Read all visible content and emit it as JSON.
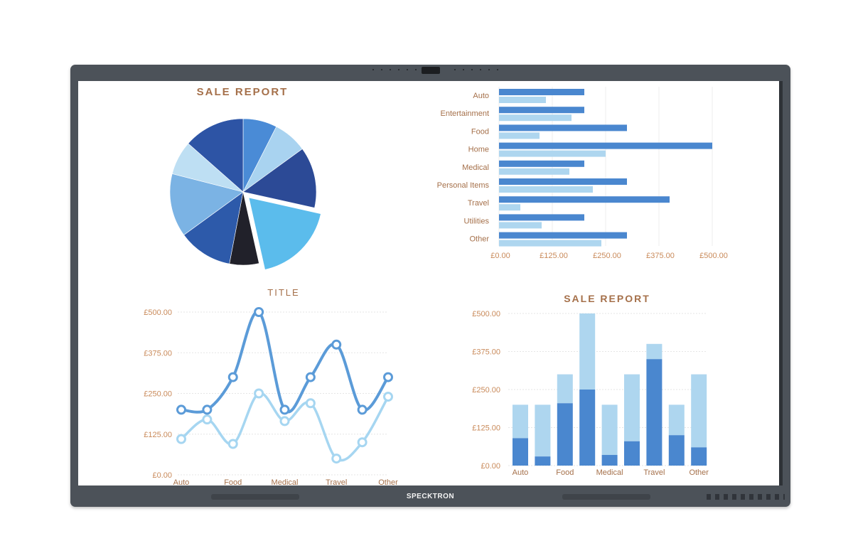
{
  "device": {
    "brand": "SPECKTRON"
  },
  "colors": {
    "dark_blue": "#2a4fa3",
    "mid_blue": "#4a87cf",
    "light_blue": "#aed6ef",
    "text_brown": "#a5704a",
    "axis_text": "#c98a5a"
  },
  "chart_data": [
    {
      "type": "pie",
      "title": "SALE REPORT",
      "slices": [
        {
          "value": 7.5,
          "color": "#4a8bd6"
        },
        {
          "value": 7.5,
          "color": "#a9d3f0"
        },
        {
          "value": 13.5,
          "color": "#2c4a96"
        },
        {
          "value": 18,
          "color": "#5bbcec",
          "exploded": true
        },
        {
          "value": 6.5,
          "color": "#21212a"
        },
        {
          "value": 12,
          "color": "#2d5aaa"
        },
        {
          "value": 14,
          "color": "#7bb3e4"
        },
        {
          "value": 7.5,
          "color": "#bedff3"
        },
        {
          "value": 13.5,
          "color": "#2d54a5"
        }
      ]
    },
    {
      "type": "bar",
      "orientation": "horizontal",
      "categories": [
        "Auto",
        "Entertainment",
        "Food",
        "Home",
        "Medical",
        "Personal Items",
        "Travel",
        "Utilities",
        "Other"
      ],
      "series": [
        {
          "values": [
            200,
            200,
            300,
            500,
            200,
            300,
            400,
            200,
            300
          ]
        },
        {
          "values": [
            110,
            170,
            95,
            250,
            165,
            220,
            50,
            100,
            240
          ]
        }
      ],
      "xlim": [
        0,
        500
      ],
      "ticks": [
        "£0.00",
        "£125.00",
        "£250.00",
        "£375.00",
        "£500.00"
      ]
    },
    {
      "type": "line",
      "title": "TITLE",
      "categories": [
        "Auto",
        "",
        "Food",
        "",
        "Medical",
        "",
        "Travel",
        "",
        "Other"
      ],
      "series": [
        {
          "values": [
            200,
            200,
            300,
            500,
            200,
            300,
            400,
            200,
            300
          ]
        },
        {
          "values": [
            110,
            170,
            95,
            250,
            165,
            220,
            50,
            100,
            240
          ]
        }
      ],
      "ylim": [
        0,
        500
      ],
      "ticks": [
        "£0.00",
        "£125.00",
        "£250.00",
        "£375.00",
        "£500.00"
      ]
    },
    {
      "type": "bar",
      "stacked": true,
      "title": "SALE REPORT",
      "categories": [
        "Auto",
        "",
        "Food",
        "",
        "Medical",
        "",
        "Travel",
        "",
        "Other"
      ],
      "series": [
        {
          "values": [
            90,
            30,
            205,
            250,
            35,
            80,
            350,
            100,
            60
          ]
        },
        {
          "values": [
            110,
            170,
            95,
            250,
            165,
            220,
            50,
            100,
            240
          ]
        }
      ],
      "ylim": [
        0,
        500
      ],
      "ticks": [
        "£0.00",
        "£125.00",
        "£250.00",
        "£375.00",
        "£500.00"
      ]
    }
  ]
}
